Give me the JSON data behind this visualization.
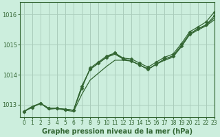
{
  "title": "Graphe pression niveau de la mer (hPa)",
  "bg_color": "#cceedd",
  "grid_color": "#aaccbb",
  "line_color": "#336633",
  "xlim": [
    -0.5,
    23
  ],
  "ylim": [
    1012.6,
    1016.4
  ],
  "xticks": [
    0,
    1,
    2,
    3,
    4,
    5,
    6,
    7,
    8,
    9,
    10,
    11,
    12,
    13,
    14,
    15,
    16,
    17,
    18,
    19,
    20,
    21,
    22,
    23
  ],
  "yticks": [
    1013,
    1014,
    1015,
    1016
  ],
  "series": [
    {
      "values": [
        1012.78,
        1012.92,
        1013.05,
        1012.88,
        1012.88,
        1012.85,
        1012.82,
        1013.55,
        1014.22,
        1014.42,
        1014.62,
        1014.72,
        1014.55,
        1014.52,
        1014.38,
        1014.25,
        1014.42,
        1014.58,
        1014.68,
        1015.02,
        1015.42,
        1015.58,
        1015.75,
        1016.08
      ],
      "marker": "D",
      "markersize": 2.5,
      "lw": 0.9
    },
    {
      "values": [
        1012.78,
        1012.92,
        1013.05,
        1012.88,
        1012.88,
        1012.85,
        1012.82,
        1013.62,
        1014.18,
        1014.38,
        1014.58,
        1014.72,
        1014.52,
        1014.45,
        1014.32,
        1014.18,
        1014.35,
        1014.52,
        1014.62,
        1014.95,
        1015.35,
        1015.52,
        1015.65,
        1015.95
      ],
      "marker": "D",
      "markersize": 2.5,
      "lw": 0.9
    },
    {
      "values": [
        1012.78,
        1012.92,
        1013.05,
        1012.88,
        1012.88,
        1012.85,
        1012.82,
        1013.62,
        1014.18,
        1014.38,
        1014.58,
        1014.68,
        1014.52,
        1014.45,
        1014.32,
        1014.18,
        1014.35,
        1014.52,
        1014.62,
        1014.95,
        1015.35,
        1015.52,
        1015.65,
        1015.88
      ],
      "marker": null,
      "markersize": 0,
      "lw": 0.9
    },
    {
      "values": [
        1012.78,
        1012.95,
        1013.05,
        1012.85,
        1012.88,
        1012.82,
        1012.78,
        1013.35,
        1013.82,
        1014.05,
        1014.28,
        1014.48,
        1014.48,
        1014.45,
        1014.32,
        1014.18,
        1014.35,
        1014.48,
        1014.58,
        1014.92,
        1015.32,
        1015.48,
        1015.62,
        1015.82
      ],
      "marker": null,
      "markersize": 0,
      "lw": 0.9
    }
  ],
  "xlabel_fontsize": 7,
  "tick_fontsize": 5.5
}
